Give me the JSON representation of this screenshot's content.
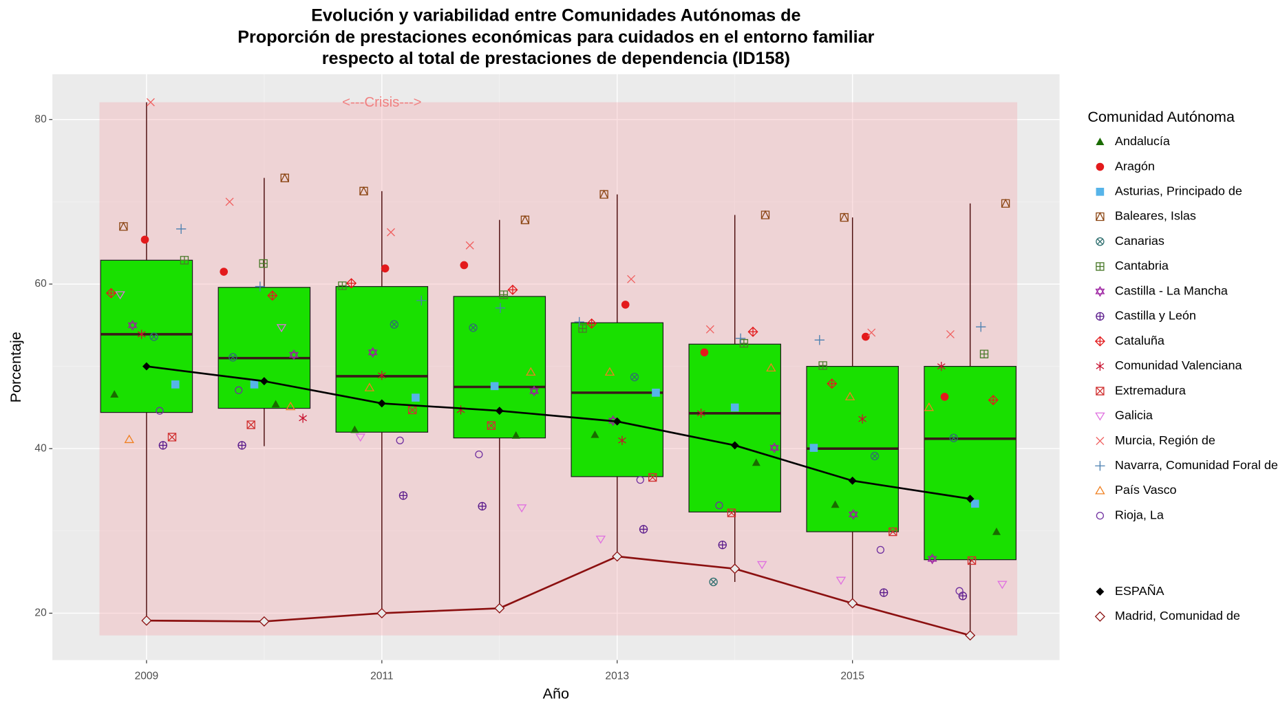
{
  "chart_data": {
    "type": "boxplot",
    "title": [
      "Evolución y variabilidad entre Comunidades Autónomas de",
      "Proporción de prestaciones económicas para cuidados en el entorno familiar",
      "respecto al total de prestaciones de dependencia (ID158)"
    ],
    "x_label": "Año",
    "y_label": "Porcentaje",
    "xlim": [
      2008.2,
      2016.76
    ],
    "ylim": [
      14.3,
      85.5
    ],
    "xticks": [
      2009,
      2011,
      2013,
      2015
    ],
    "yticks": [
      20,
      40,
      60,
      80
    ],
    "grid": true,
    "x": [
      2009,
      2010,
      2011,
      2012,
      2013,
      2014,
      2015,
      2016
    ],
    "shade": {
      "x": [
        2008.6,
        2016.4
      ],
      "y": [
        17.3,
        82.1
      ],
      "color": "#f4a6ad"
    },
    "annotation": {
      "text": "<---Crisis--->",
      "x": 2011,
      "y": 82,
      "color": "#f08080"
    },
    "boxes": {
      "color": "#19e000",
      "whisker_low": [
        19.1,
        40.3,
        20.0,
        20.6,
        26.9,
        23.8,
        21.2,
        17.3
      ],
      "lower": [
        44.4,
        44.9,
        42.0,
        41.3,
        36.6,
        32.3,
        29.9,
        26.5
      ],
      "median": [
        53.9,
        51.0,
        48.8,
        47.5,
        46.8,
        44.3,
        40.0,
        41.2
      ],
      "upper": [
        62.9,
        59.6,
        59.7,
        58.5,
        55.3,
        52.7,
        50.0,
        50.0
      ],
      "whisker_high": [
        82.1,
        72.9,
        71.3,
        67.8,
        70.9,
        68.4,
        68.1,
        69.8
      ]
    },
    "legend_title": "Comunidad Autónoma",
    "series": [
      {
        "name": "Andalucía",
        "color": "#1a6b00",
        "marker": "triangle-filled",
        "values": [
          46.6,
          45.4,
          42.3,
          41.6,
          41.7,
          38.3,
          33.2,
          29.9
        ]
      },
      {
        "name": "Aragón",
        "color": "#e31a1c",
        "marker": "circle-filled",
        "values": [
          65.4,
          61.5,
          61.9,
          62.3,
          57.5,
          51.7,
          53.6,
          46.3
        ]
      },
      {
        "name": "Asturias, Principado de",
        "color": "#56b4e9",
        "marker": "square-filled",
        "values": [
          47.8,
          47.8,
          46.2,
          47.6,
          46.8,
          45.0,
          40.1,
          33.3
        ]
      },
      {
        "name": "Baleares, Islas",
        "color": "#8b4513",
        "marker": "square-triangle",
        "values": [
          67.0,
          72.9,
          71.3,
          67.8,
          70.9,
          68.4,
          68.1,
          69.8
        ]
      },
      {
        "name": "Canarias",
        "color": "#2f6f6f",
        "marker": "circle-x",
        "values": [
          53.6,
          51.1,
          55.1,
          54.7,
          48.7,
          23.8,
          39.1,
          41.3
        ]
      },
      {
        "name": "Cantabria",
        "color": "#4a7a2a",
        "marker": "square-plus",
        "values": [
          62.9,
          62.5,
          59.8,
          58.7,
          54.6,
          52.8,
          50.1,
          51.5
        ]
      },
      {
        "name": "Castilla - La Mancha",
        "color": "#9b1fa0",
        "marker": "star",
        "values": [
          55.0,
          51.4,
          51.7,
          47.0,
          43.4,
          40.1,
          32.0,
          26.6
        ]
      },
      {
        "name": "Castilla y León",
        "color": "#5a1a8b",
        "marker": "circle-plus",
        "values": [
          40.4,
          40.4,
          34.3,
          33.0,
          30.2,
          28.3,
          22.5,
          22.1
        ]
      },
      {
        "name": "Cataluña",
        "color": "#e31a1c",
        "marker": "diamond-plus",
        "values": [
          58.9,
          58.6,
          60.1,
          59.3,
          55.2,
          54.2,
          47.9,
          45.9
        ]
      },
      {
        "name": "Comunidad Valenciana",
        "color": "#c8102e",
        "marker": "asterisk",
        "values": [
          53.9,
          43.7,
          48.9,
          44.7,
          41.0,
          44.3,
          43.6,
          50.0
        ]
      },
      {
        "name": "Extremadura",
        "color": "#d03030",
        "marker": "square-x",
        "values": [
          41.4,
          42.9,
          44.7,
          42.8,
          36.5,
          32.2,
          29.9,
          26.4
        ]
      },
      {
        "name": "Galicia",
        "color": "#e070e0",
        "marker": "triangle-down",
        "values": [
          58.7,
          54.7,
          41.4,
          32.8,
          29.0,
          25.9,
          24.0,
          23.5
        ]
      },
      {
        "name": "Murcia, Región de",
        "color": "#f06060",
        "marker": "cross",
        "values": [
          82.1,
          70.0,
          66.3,
          64.7,
          60.6,
          54.5,
          54.1,
          53.9
        ]
      },
      {
        "name": "Navarra, Comunidad Foral de",
        "color": "#4a7fb0",
        "marker": "plus",
        "values": [
          66.7,
          59.7,
          58.0,
          57.1,
          55.4,
          53.4,
          53.2,
          54.8
        ]
      },
      {
        "name": "País Vasco",
        "color": "#f08020",
        "marker": "triangle",
        "values": [
          41.1,
          45.1,
          47.4,
          49.3,
          49.3,
          49.8,
          46.3,
          45.0
        ]
      },
      {
        "name": "Rioja, La",
        "color": "#7030a0",
        "marker": "circle",
        "values": [
          44.6,
          47.1,
          41.0,
          39.3,
          36.2,
          33.1,
          27.7,
          22.7
        ]
      }
    ],
    "reference_lines": [
      {
        "name": "ESPAÑA",
        "color": "#000000",
        "marker": "diamond-filled",
        "values": [
          50.0,
          48.2,
          45.5,
          44.6,
          43.3,
          40.4,
          36.1,
          33.9
        ]
      },
      {
        "name": "Madrid, Comunidad de",
        "color": "#8b1010",
        "marker": "diamond",
        "values": [
          19.1,
          19.0,
          20.0,
          20.6,
          26.9,
          25.4,
          21.2,
          17.3
        ]
      }
    ]
  }
}
